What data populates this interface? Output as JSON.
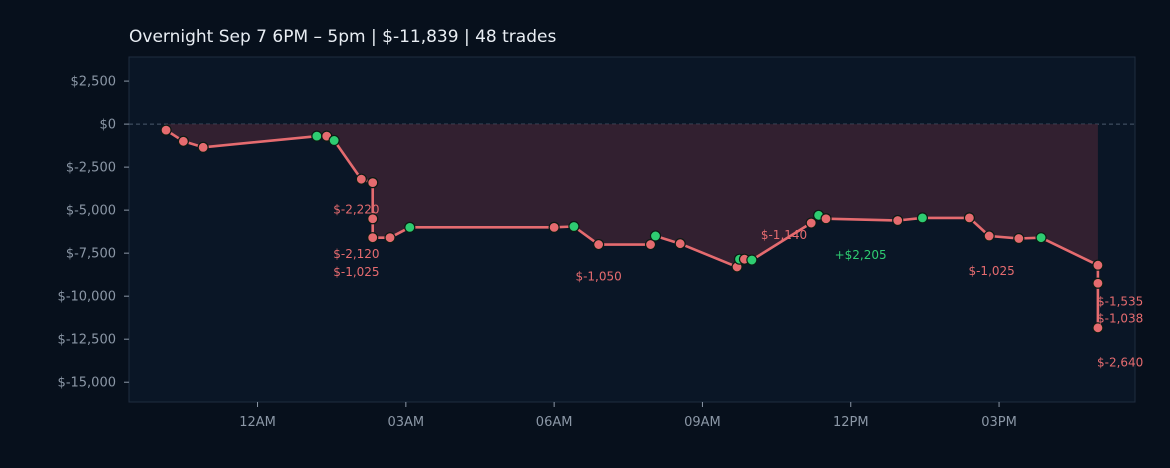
{
  "chart_data": {
    "type": "line",
    "title": "Overnight  Sep 7 6PM – 5pm  |  $-11,839  |  48 trades",
    "xlabel": "",
    "ylabel": "",
    "y_tick_labels": [
      "$2,500",
      "$0",
      "$-2,500",
      "$-5,000",
      "$-7,500",
      "$-10,000",
      "$-12,500",
      "$-15,000"
    ],
    "y_tick_values": [
      2500,
      0,
      -2500,
      -5000,
      -7500,
      -10000,
      -12500,
      -15000
    ],
    "x_tick_labels": [
      "12AM",
      "03AM",
      "06AM",
      "09AM",
      "12PM",
      "03PM"
    ],
    "x_tick_hours": [
      0,
      3,
      6,
      9,
      12,
      15
    ],
    "xlim_hours": [
      -2.6,
      17.75
    ],
    "ylim": [
      3900,
      -16150
    ],
    "zero_line": true,
    "grid": false,
    "colors": {
      "background": "#07101c",
      "plot_background": "#0a1626",
      "line": "#e56b6f",
      "loss_marker": "#e56b6f",
      "win_marker": "#2ecc71",
      "fill": "#3a2233",
      "win_text": "#2ecc71",
      "loss_text": "#e56b6f"
    },
    "series": [
      {
        "values": [
          {
            "x": -1.85,
            "y": -350,
            "win": false
          },
          {
            "x": -1.5,
            "y": -1000,
            "win": false
          },
          {
            "x": -1.1,
            "y": -1350,
            "win": false
          },
          {
            "x": 1.2,
            "y": -700,
            "win": true
          },
          {
            "x": 1.4,
            "y": -700,
            "win": false
          },
          {
            "x": 1.55,
            "y": -950,
            "win": true
          },
          {
            "x": 2.1,
            "y": -3200,
            "win": false
          },
          {
            "x": 2.33,
            "y": -3400,
            "win": false
          },
          {
            "x": 2.33,
            "y": -5500,
            "win": false
          },
          {
            "x": 2.33,
            "y": -6600,
            "win": false
          },
          {
            "x": 2.68,
            "y": -6600,
            "win": false
          },
          {
            "x": 3.08,
            "y": -6000,
            "win": true
          },
          {
            "x": 6.0,
            "y": -6000,
            "win": false
          },
          {
            "x": 6.4,
            "y": -5950,
            "win": true
          },
          {
            "x": 6.9,
            "y": -7000,
            "win": false
          },
          {
            "x": 7.95,
            "y": -7000,
            "win": false
          },
          {
            "x": 8.05,
            "y": -6500,
            "win": true
          },
          {
            "x": 8.55,
            "y": -6950,
            "win": false
          },
          {
            "x": 9.7,
            "y": -8300,
            "win": false
          },
          {
            "x": 9.75,
            "y": -7850,
            "win": true
          },
          {
            "x": 9.85,
            "y": -7850,
            "win": false
          },
          {
            "x": 10.0,
            "y": -7900,
            "win": true
          },
          {
            "x": 11.2,
            "y": -5750,
            "win": false
          },
          {
            "x": 11.35,
            "y": -5300,
            "win": true
          },
          {
            "x": 11.5,
            "y": -5500,
            "win": false
          },
          {
            "x": 12.95,
            "y": -5600,
            "win": false
          },
          {
            "x": 13.45,
            "y": -5450,
            "win": true
          },
          {
            "x": 14.4,
            "y": -5450,
            "win": false
          },
          {
            "x": 14.8,
            "y": -6500,
            "win": false
          },
          {
            "x": 15.4,
            "y": -6650,
            "win": false
          },
          {
            "x": 15.85,
            "y": -6600,
            "win": true
          },
          {
            "x": 17.0,
            "y": -8200,
            "win": false
          },
          {
            "x": 17.0,
            "y": -9250,
            "win": false
          },
          {
            "x": 17.0,
            "y": -11839,
            "win": false
          }
        ]
      }
    ],
    "annotations": [
      {
        "text": "$-2,220",
        "x": 2.0,
        "y": -4950,
        "win": false
      },
      {
        "text": "$-2,120",
        "x": 2.0,
        "y": -7550,
        "win": false
      },
      {
        "text": "$-1,025",
        "x": 2.0,
        "y": -8600,
        "win": false
      },
      {
        "text": "$-1,050",
        "x": 6.9,
        "y": -8850,
        "win": false
      },
      {
        "text": "$-1,140",
        "x": 10.65,
        "y": -6450,
        "win": false
      },
      {
        "text": "+$2,205",
        "x": 12.2,
        "y": -7600,
        "win": true
      },
      {
        "text": "$-1,025",
        "x": 14.85,
        "y": -8550,
        "win": false
      },
      {
        "text": "$-1,535",
        "x": 17.45,
        "y": -10300,
        "win": false
      },
      {
        "text": "$-1,038",
        "x": 17.45,
        "y": -11300,
        "win": false
      },
      {
        "text": "$-2,640",
        "x": 17.45,
        "y": -13850,
        "win": false
      }
    ]
  }
}
